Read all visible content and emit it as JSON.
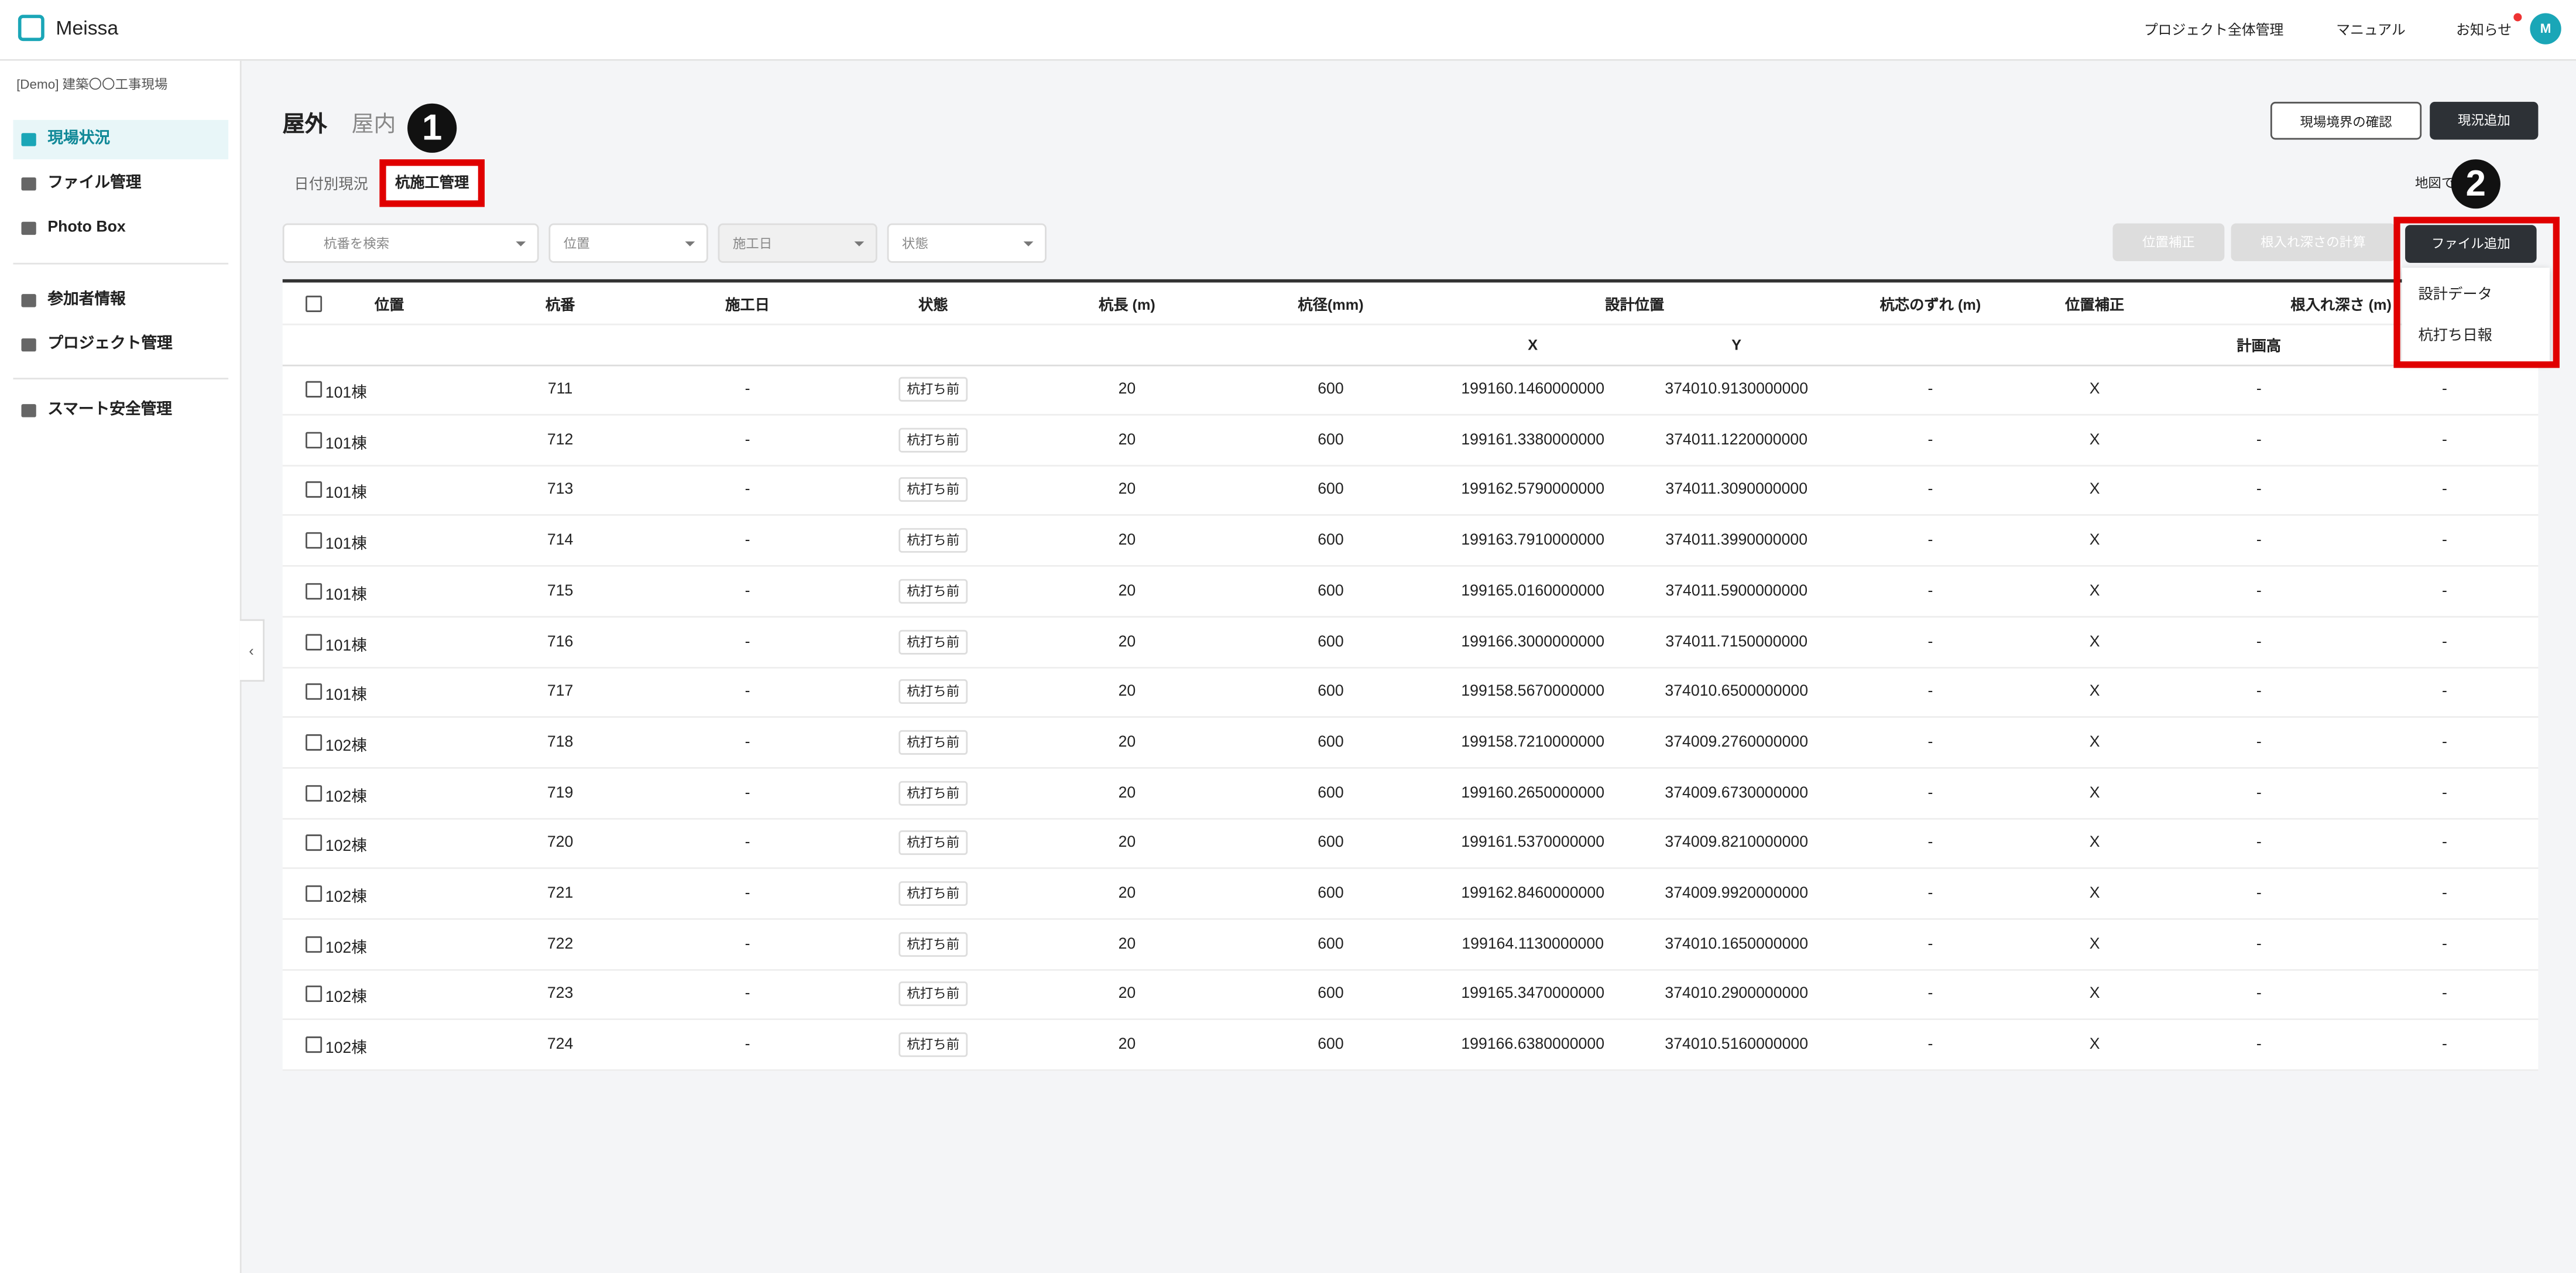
{
  "header": {
    "logo": "Meissa",
    "links": [
      "プロジェクト全体管理",
      "マニュアル",
      "お知らせ"
    ],
    "avatar": "M"
  },
  "sidebar": {
    "project": "[Demo] 建築〇〇工事現場",
    "menu": [
      "現場状況",
      "ファイル管理",
      "Photo Box"
    ],
    "menu2": [
      "参加者情報",
      "プロジェクト管理"
    ],
    "menu3": [
      "スマート安全管理"
    ]
  },
  "tabs": [
    "屋外",
    "屋内"
  ],
  "subtabs": [
    "日付別現況",
    "杭施工管理"
  ],
  "buttons": {
    "boundary": "現場境界の確認",
    "add": "現況追加",
    "map": "地図で確認",
    "correct": "位置補正",
    "depth": "根入れ深さの計算",
    "file": "ファイル追加"
  },
  "filters": [
    "杭番を検索",
    "位置",
    "施工日",
    "状態"
  ],
  "dropdown": [
    "設計データ",
    "杭打ち日報"
  ],
  "annotations": [
    "1",
    "2"
  ],
  "table": {
    "header": [
      "位置",
      "杭番",
      "施工日",
      "状態",
      "杭長 (m)",
      "杭径(mm)",
      "設計位置",
      "杭芯のずれ (m)",
      "位置補正",
      "根入れ深さ (m)"
    ],
    "subheader": [
      "X",
      "Y",
      "計画高"
    ],
    "rows": [
      [
        "101棟",
        "711",
        "-",
        "杭打ち前",
        "20",
        "600",
        "199160.1460000000",
        "374010.9130000000",
        "-",
        "X",
        "-",
        "-"
      ],
      [
        "101棟",
        "712",
        "-",
        "杭打ち前",
        "20",
        "600",
        "199161.3380000000",
        "374011.1220000000",
        "-",
        "X",
        "-",
        "-"
      ],
      [
        "101棟",
        "713",
        "-",
        "杭打ち前",
        "20",
        "600",
        "199162.5790000000",
        "374011.3090000000",
        "-",
        "X",
        "-",
        "-"
      ],
      [
        "101棟",
        "714",
        "-",
        "杭打ち前",
        "20",
        "600",
        "199163.7910000000",
        "374011.3990000000",
        "-",
        "X",
        "-",
        "-"
      ],
      [
        "101棟",
        "715",
        "-",
        "杭打ち前",
        "20",
        "600",
        "199165.0160000000",
        "374011.5900000000",
        "-",
        "X",
        "-",
        "-"
      ],
      [
        "101棟",
        "716",
        "-",
        "杭打ち前",
        "20",
        "600",
        "199166.3000000000",
        "374011.7150000000",
        "-",
        "X",
        "-",
        "-"
      ],
      [
        "101棟",
        "717",
        "-",
        "杭打ち前",
        "20",
        "600",
        "199158.5670000000",
        "374010.6500000000",
        "-",
        "X",
        "-",
        "-"
      ],
      [
        "102棟",
        "718",
        "-",
        "杭打ち前",
        "20",
        "600",
        "199158.7210000000",
        "374009.2760000000",
        "-",
        "X",
        "-",
        "-"
      ],
      [
        "102棟",
        "719",
        "-",
        "杭打ち前",
        "20",
        "600",
        "199160.2650000000",
        "374009.6730000000",
        "-",
        "X",
        "-",
        "-"
      ],
      [
        "102棟",
        "720",
        "-",
        "杭打ち前",
        "20",
        "600",
        "199161.5370000000",
        "374009.8210000000",
        "-",
        "X",
        "-",
        "-"
      ],
      [
        "102棟",
        "721",
        "-",
        "杭打ち前",
        "20",
        "600",
        "199162.8460000000",
        "374009.9920000000",
        "-",
        "X",
        "-",
        "-"
      ],
      [
        "102棟",
        "722",
        "-",
        "杭打ち前",
        "20",
        "600",
        "199164.1130000000",
        "374010.1650000000",
        "-",
        "X",
        "-",
        "-"
      ],
      [
        "102棟",
        "723",
        "-",
        "杭打ち前",
        "20",
        "600",
        "199165.3470000000",
        "374010.2900000000",
        "-",
        "X",
        "-",
        "-"
      ],
      [
        "102棟",
        "724",
        "-",
        "杭打ち前",
        "20",
        "600",
        "199166.6380000000",
        "374010.5160000000",
        "-",
        "X",
        "-",
        "-"
      ]
    ]
  }
}
